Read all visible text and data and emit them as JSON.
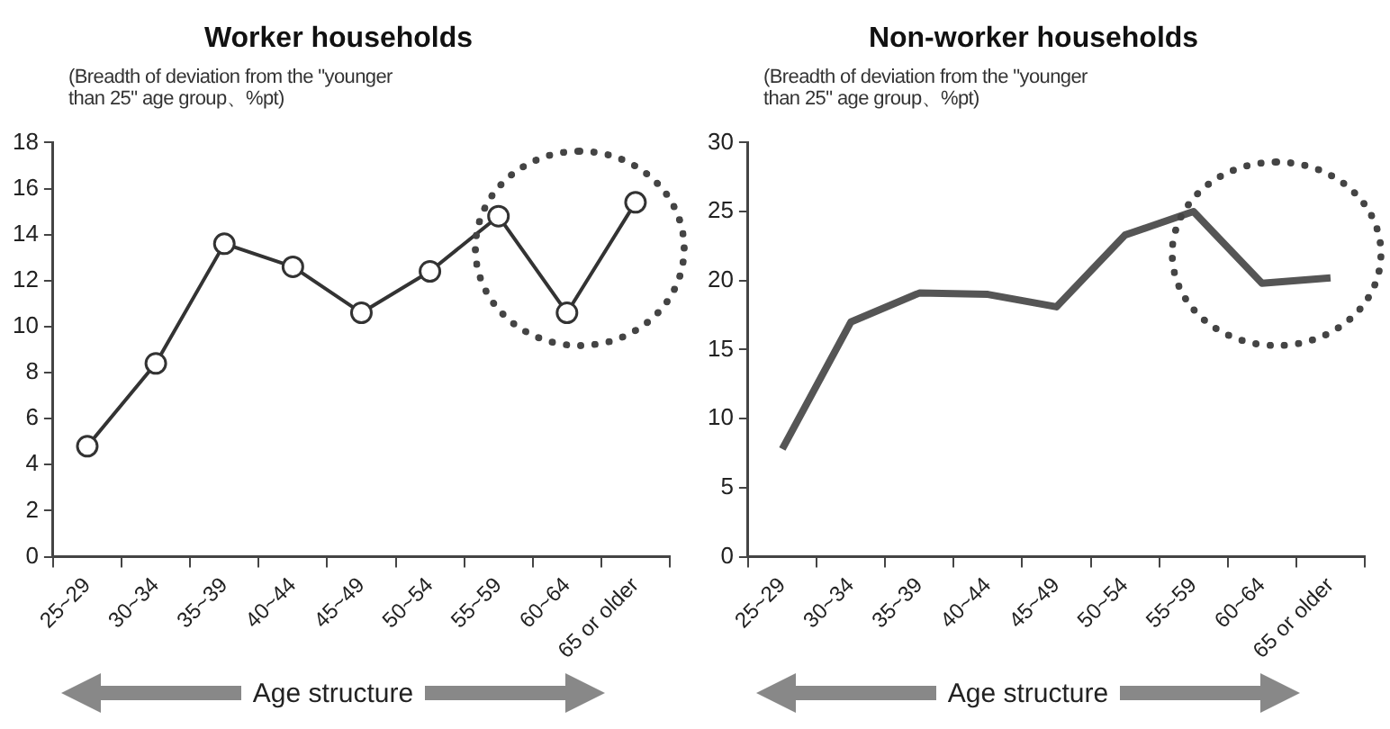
{
  "chart_data": [
    {
      "type": "line",
      "title": "Worker households",
      "ylabel": "(Breadth of deviation from the \"younger than 25\" age group、%pt)",
      "categories": [
        "25~29",
        "30~34",
        "35~39",
        "40~44",
        "45~49",
        "50~54",
        "55~59",
        "60~64",
        "65 or older"
      ],
      "series": [
        {
          "color": "#333333",
          "values": [
            4.8,
            8.4,
            13.6,
            12.6,
            10.6,
            12.4,
            14.8,
            10.6,
            15.4
          ]
        }
      ],
      "ylim": [
        0,
        18
      ],
      "yticks": [
        0,
        2,
        4,
        6,
        8,
        10,
        12,
        14,
        16,
        18
      ],
      "grid": false,
      "legend": false,
      "marker": "circle",
      "annotations": [
        "Age structure"
      ]
    },
    {
      "type": "line",
      "title": "Non-worker households",
      "ylabel": "(Breadth of deviation from the \"younger than 25\" age group、%pt)",
      "categories": [
        "25~29",
        "30~34",
        "35~39",
        "40~44",
        "45~49",
        "50~54",
        "55~59",
        "60~64",
        "65 or older"
      ],
      "series": [
        {
          "color": "#555555",
          "values": [
            7.8,
            17,
            19.1,
            19,
            18.1,
            23.3,
            25,
            19.8,
            20.2
          ]
        }
      ],
      "ylim": [
        0,
        30
      ],
      "yticks": [
        0,
        5,
        10,
        15,
        20,
        25,
        30
      ],
      "grid": false,
      "legend": false,
      "marker": "none",
      "annotations": [
        "Age structure"
      ]
    }
  ]
}
